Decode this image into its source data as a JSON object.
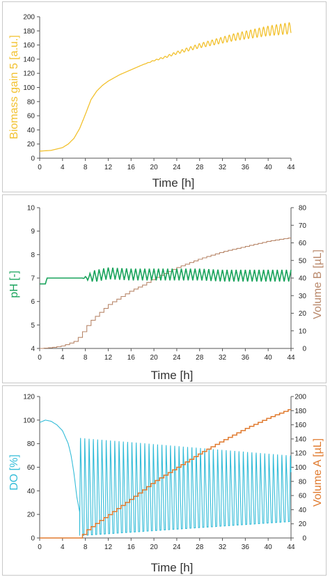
{
  "chart_data": [
    {
      "type": "line",
      "xlabel": "Time    [h]",
      "ylabel": "Biomass gain 5   [a.u.]",
      "xlim": [
        0,
        44
      ],
      "ylim": [
        0,
        200
      ],
      "xticks": [
        "0",
        "4",
        "8",
        "12",
        "16",
        "20",
        "24",
        "28",
        "32",
        "36",
        "40",
        "44"
      ],
      "yticks": [
        "0",
        "20",
        "40",
        "60",
        "80",
        "100",
        "120",
        "140",
        "160",
        "180",
        "200"
      ],
      "grid": false,
      "colors": {
        "biomass": "#f2c12e"
      },
      "series": [
        {
          "axis": "left",
          "x": [
            0,
            2,
            4,
            5,
            6,
            7,
            8,
            9,
            10,
            11,
            12,
            14,
            16,
            18,
            20,
            22,
            24,
            26,
            28,
            30,
            32,
            34,
            36,
            38,
            40,
            42,
            44
          ],
          "y": [
            10,
            11,
            15,
            20,
            28,
            42,
            62,
            83,
            95,
            103,
            109,
            118,
            125,
            132,
            138,
            143,
            149,
            154,
            159,
            163,
            167,
            171,
            174,
            177,
            180,
            182,
            184
          ],
          "oscillation_amplitude_end": 8,
          "oscillation_period_h": 0.75
        }
      ]
    },
    {
      "type": "line",
      "xlabel": "Time    [h]",
      "ylabel": "pH    [-]",
      "y2label": "Volume  B    [µL]",
      "xlim": [
        0,
        44
      ],
      "ylim": [
        4,
        10
      ],
      "y2lim": [
        0,
        80
      ],
      "xticks": [
        "0",
        "4",
        "8",
        "12",
        "16",
        "20",
        "24",
        "28",
        "32",
        "36",
        "40",
        "44"
      ],
      "yticks": [
        "4",
        "5",
        "6",
        "7",
        "8",
        "9",
        "10"
      ],
      "y2ticks": [
        "0",
        "10",
        "20",
        "30",
        "40",
        "50",
        "60",
        "70",
        "80"
      ],
      "grid": false,
      "colors": {
        "ph": "#18a35b",
        "volumeB": "#b8876a"
      },
      "series": [
        {
          "axis": "left",
          "x": [
            0,
            1,
            1.3,
            8,
            9,
            12,
            16,
            20,
            24,
            28,
            32,
            36,
            40,
            44
          ],
          "y": [
            6.75,
            6.75,
            7.0,
            7.0,
            7.05,
            7.2,
            7.15,
            7.15,
            7.15,
            7.15,
            7.1,
            7.1,
            7.1,
            7.1
          ],
          "oscillation_amplitude": 0.25,
          "oscillation_period_h": 0.8
        },
        {
          "axis": "right",
          "x": [
            0,
            2,
            4,
            6,
            7,
            8,
            9,
            10,
            12,
            14,
            16,
            18,
            20,
            24,
            28,
            32,
            36,
            40,
            44
          ],
          "y": [
            0,
            0.5,
            1.5,
            4,
            7,
            12,
            16,
            19,
            25,
            29,
            33,
            36,
            40,
            46,
            51,
            55,
            58,
            61,
            63
          ],
          "step_h": 0.75
        }
      ]
    },
    {
      "type": "line",
      "xlabel": "Time    [h]",
      "ylabel": "DO    [%]",
      "y2label": "Volume  A    [µL]",
      "xlim": [
        0,
        44
      ],
      "ylim": [
        0,
        120
      ],
      "y2lim": [
        0,
        200
      ],
      "xticks": [
        "0",
        "4",
        "8",
        "12",
        "16",
        "20",
        "24",
        "28",
        "32",
        "36",
        "40",
        "44"
      ],
      "yticks": [
        "0",
        "20",
        "40",
        "60",
        "80",
        "100",
        "120"
      ],
      "y2ticks": [
        "0",
        "20",
        "40",
        "60",
        "80",
        "100",
        "120",
        "140",
        "160",
        "180",
        "200"
      ],
      "grid": false,
      "colors": {
        "do": "#33bcd8",
        "volumeA": "#e07a2e"
      },
      "series": [
        {
          "axis": "left",
          "x": [
            0,
            1,
            2,
            3,
            4,
            5,
            5.5,
            6,
            6.5,
            7
          ],
          "y": [
            98,
            100,
            99,
            96,
            91,
            80,
            70,
            55,
            35,
            22
          ],
          "pulse_phase_from_h": 7,
          "pulse_peak_start": 88,
          "pulse_peak_end": 72,
          "pulse_trough_start": 2,
          "pulse_trough_end": 14,
          "pulse_period_h": 0.75
        },
        {
          "axis": "right",
          "x": [
            0,
            7,
            8,
            10,
            12,
            16,
            20,
            24,
            28,
            32,
            36,
            40,
            44
          ],
          "y": [
            0,
            0,
            10,
            22,
            33,
            56,
            80,
            100,
            120,
            138,
            155,
            170,
            183
          ],
          "step_h": 0.75
        }
      ]
    }
  ]
}
